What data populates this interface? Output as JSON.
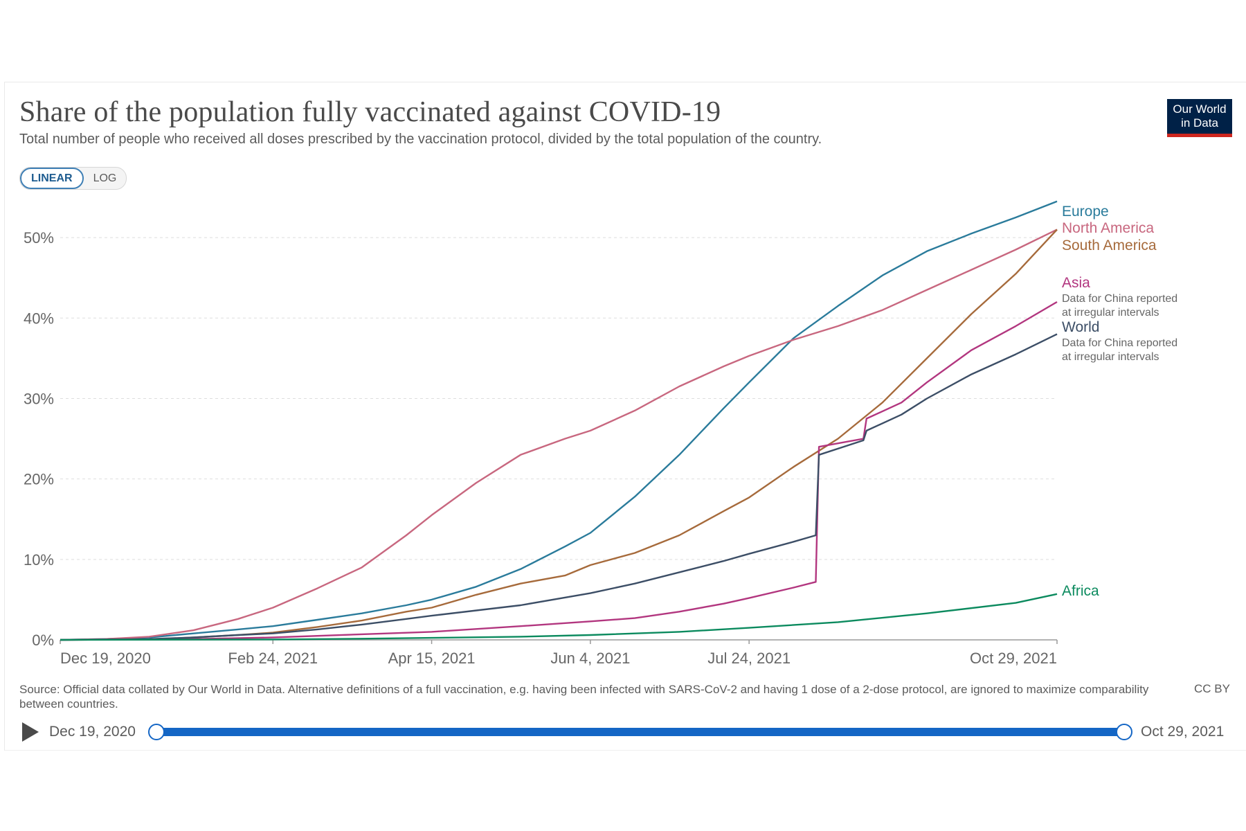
{
  "header": {
    "title": "Share of the population fully vaccinated against COVID-19",
    "subtitle": "Total number of people who received all doses prescribed by the vaccination protocol, divided by the total population of the country.",
    "logo_line1": "Our World",
    "logo_line2": "in Data"
  },
  "controls": {
    "linear_label": "LINEAR",
    "log_label": "LOG",
    "active_scale": "linear"
  },
  "footer": {
    "source": "Source: Official data collated by Our World in Data. Alternative definitions of a full vaccination, e.g. having been infected with SARS-CoV-2 and having 1 dose of a 2-dose protocol, are ignored to maximize comparability between countries.",
    "license": "CC BY"
  },
  "timeline": {
    "start_label": "Dec 19, 2020",
    "end_label": "Oct 29, 2021"
  },
  "chart_data": {
    "type": "line",
    "xlim": [
      "2020-12-19",
      "2021-10-29"
    ],
    "ylim": [
      0,
      55
    ],
    "y_ticks": [
      0,
      10,
      20,
      30,
      40,
      50
    ],
    "y_tick_labels": [
      "0%",
      "10%",
      "20%",
      "30%",
      "40%",
      "50%"
    ],
    "x_ticks": [
      "2020-12-19",
      "2021-02-24",
      "2021-04-15",
      "2021-06-04",
      "2021-07-24",
      "2021-10-29"
    ],
    "x_tick_labels": [
      "Dec 19, 2020",
      "Feb 24, 2021",
      "Apr 15, 2021",
      "Jun 4, 2021",
      "Jul 24, 2021",
      "Oct 29, 2021"
    ],
    "grid": "horizontal-dashed",
    "legend": "right-end-labels",
    "series": [
      {
        "name": "Europe",
        "color": "#2a7b9b",
        "points": [
          [
            "2020-12-19",
            0
          ],
          [
            "2021-01-02",
            0.1
          ],
          [
            "2021-01-16",
            0.3
          ],
          [
            "2021-01-30",
            0.8
          ],
          [
            "2021-02-13",
            1.3
          ],
          [
            "2021-02-24",
            1.7
          ],
          [
            "2021-03-10",
            2.5
          ],
          [
            "2021-03-24",
            3.3
          ],
          [
            "2021-04-07",
            4.3
          ],
          [
            "2021-04-15",
            5.0
          ],
          [
            "2021-04-29",
            6.6
          ],
          [
            "2021-05-13",
            8.8
          ],
          [
            "2021-05-27",
            11.6
          ],
          [
            "2021-06-04",
            13.3
          ],
          [
            "2021-06-18",
            17.8
          ],
          [
            "2021-07-02",
            23.0
          ],
          [
            "2021-07-16",
            28.8
          ],
          [
            "2021-07-24",
            32.0
          ],
          [
            "2021-08-07",
            37.5
          ],
          [
            "2021-08-21",
            41.5
          ],
          [
            "2021-09-04",
            45.3
          ],
          [
            "2021-09-18",
            48.3
          ],
          [
            "2021-10-02",
            50.5
          ],
          [
            "2021-10-16",
            52.5
          ],
          [
            "2021-10-29",
            54.5
          ]
        ]
      },
      {
        "name": "North America",
        "color": "#c8677f",
        "points": [
          [
            "2020-12-19",
            0
          ],
          [
            "2021-01-02",
            0.1
          ],
          [
            "2021-01-16",
            0.4
          ],
          [
            "2021-01-30",
            1.2
          ],
          [
            "2021-02-13",
            2.6
          ],
          [
            "2021-02-24",
            4.0
          ],
          [
            "2021-03-10",
            6.4
          ],
          [
            "2021-03-24",
            9.0
          ],
          [
            "2021-04-07",
            13.0
          ],
          [
            "2021-04-15",
            15.5
          ],
          [
            "2021-04-29",
            19.5
          ],
          [
            "2021-05-13",
            23.0
          ],
          [
            "2021-05-27",
            25.0
          ],
          [
            "2021-06-04",
            26.0
          ],
          [
            "2021-06-18",
            28.5
          ],
          [
            "2021-07-02",
            31.5
          ],
          [
            "2021-07-16",
            34.0
          ],
          [
            "2021-07-24",
            35.3
          ],
          [
            "2021-08-07",
            37.3
          ],
          [
            "2021-08-21",
            39.0
          ],
          [
            "2021-09-04",
            41.0
          ],
          [
            "2021-09-18",
            43.5
          ],
          [
            "2021-10-02",
            46.0
          ],
          [
            "2021-10-16",
            48.5
          ],
          [
            "2021-10-29",
            51.0
          ]
        ]
      },
      {
        "name": "South America",
        "color": "#a66a3b",
        "points": [
          [
            "2020-12-19",
            0
          ],
          [
            "2021-01-16",
            0.05
          ],
          [
            "2021-01-30",
            0.3
          ],
          [
            "2021-02-13",
            0.6
          ],
          [
            "2021-02-24",
            0.9
          ],
          [
            "2021-03-10",
            1.6
          ],
          [
            "2021-03-24",
            2.4
          ],
          [
            "2021-04-07",
            3.5
          ],
          [
            "2021-04-15",
            4.0
          ],
          [
            "2021-04-29",
            5.6
          ],
          [
            "2021-05-13",
            7.0
          ],
          [
            "2021-05-27",
            8.0
          ],
          [
            "2021-06-04",
            9.3
          ],
          [
            "2021-06-18",
            10.8
          ],
          [
            "2021-07-02",
            13.0
          ],
          [
            "2021-07-16",
            16.0
          ],
          [
            "2021-07-24",
            17.7
          ],
          [
            "2021-08-07",
            21.5
          ],
          [
            "2021-08-21",
            25.0
          ],
          [
            "2021-09-04",
            29.5
          ],
          [
            "2021-09-18",
            35.0
          ],
          [
            "2021-10-02",
            40.5
          ],
          [
            "2021-10-16",
            45.5
          ],
          [
            "2021-10-29",
            51.0
          ]
        ]
      },
      {
        "name": "Asia",
        "color": "#b2367f",
        "points": [
          [
            "2020-12-19",
            0
          ],
          [
            "2021-01-30",
            0.1
          ],
          [
            "2021-02-24",
            0.3
          ],
          [
            "2021-03-24",
            0.7
          ],
          [
            "2021-04-15",
            1.0
          ],
          [
            "2021-05-13",
            1.7
          ],
          [
            "2021-06-04",
            2.3
          ],
          [
            "2021-06-18",
            2.7
          ],
          [
            "2021-07-02",
            3.5
          ],
          [
            "2021-07-16",
            4.5
          ],
          [
            "2021-07-24",
            5.2
          ],
          [
            "2021-08-07",
            6.5
          ],
          [
            "2021-08-14",
            7.2
          ],
          [
            "2021-08-15",
            24.0
          ],
          [
            "2021-08-29",
            25.0
          ],
          [
            "2021-08-30",
            27.5
          ],
          [
            "2021-09-10",
            29.5
          ],
          [
            "2021-09-18",
            32.0
          ],
          [
            "2021-10-02",
            36.0
          ],
          [
            "2021-10-16",
            39.0
          ],
          [
            "2021-10-29",
            42.0
          ]
        ]
      },
      {
        "name": "World",
        "color": "#3c4e66",
        "points": [
          [
            "2020-12-19",
            0
          ],
          [
            "2021-01-16",
            0.1
          ],
          [
            "2021-01-30",
            0.3
          ],
          [
            "2021-02-13",
            0.6
          ],
          [
            "2021-02-24",
            0.8
          ],
          [
            "2021-03-10",
            1.3
          ],
          [
            "2021-03-24",
            1.9
          ],
          [
            "2021-04-07",
            2.6
          ],
          [
            "2021-04-15",
            3.0
          ],
          [
            "2021-05-13",
            4.3
          ],
          [
            "2021-06-04",
            5.8
          ],
          [
            "2021-06-18",
            7.0
          ],
          [
            "2021-07-02",
            8.4
          ],
          [
            "2021-07-16",
            9.8
          ],
          [
            "2021-07-24",
            10.7
          ],
          [
            "2021-08-07",
            12.2
          ],
          [
            "2021-08-14",
            13.0
          ],
          [
            "2021-08-15",
            23.0
          ],
          [
            "2021-08-29",
            24.8
          ],
          [
            "2021-08-30",
            26.0
          ],
          [
            "2021-09-10",
            28.0
          ],
          [
            "2021-09-18",
            30.0
          ],
          [
            "2021-10-02",
            33.0
          ],
          [
            "2021-10-16",
            35.5
          ],
          [
            "2021-10-29",
            38.0
          ]
        ]
      },
      {
        "name": "Africa",
        "color": "#0b8a5e",
        "points": [
          [
            "2020-12-19",
            0
          ],
          [
            "2021-02-24",
            0.05
          ],
          [
            "2021-03-24",
            0.15
          ],
          [
            "2021-04-15",
            0.25
          ],
          [
            "2021-05-13",
            0.4
          ],
          [
            "2021-06-04",
            0.6
          ],
          [
            "2021-07-02",
            1.0
          ],
          [
            "2021-07-24",
            1.5
          ],
          [
            "2021-08-21",
            2.2
          ],
          [
            "2021-09-18",
            3.3
          ],
          [
            "2021-10-16",
            4.6
          ],
          [
            "2021-10-29",
            5.7
          ]
        ]
      }
    ],
    "end_labels": [
      {
        "series": "Europe",
        "lines": [
          "Europe"
        ]
      },
      {
        "series": "North America",
        "lines": [
          "North America"
        ]
      },
      {
        "series": "South America",
        "lines": [
          "South America"
        ]
      },
      {
        "series": "Asia",
        "lines": [
          "Asia"
        ],
        "note": [
          "Data for China reported",
          "at irregular intervals"
        ]
      },
      {
        "series": "World",
        "lines": [
          "World"
        ],
        "note": [
          "Data for China reported",
          "at irregular intervals"
        ]
      },
      {
        "series": "Africa",
        "lines": [
          "Africa"
        ]
      }
    ]
  }
}
